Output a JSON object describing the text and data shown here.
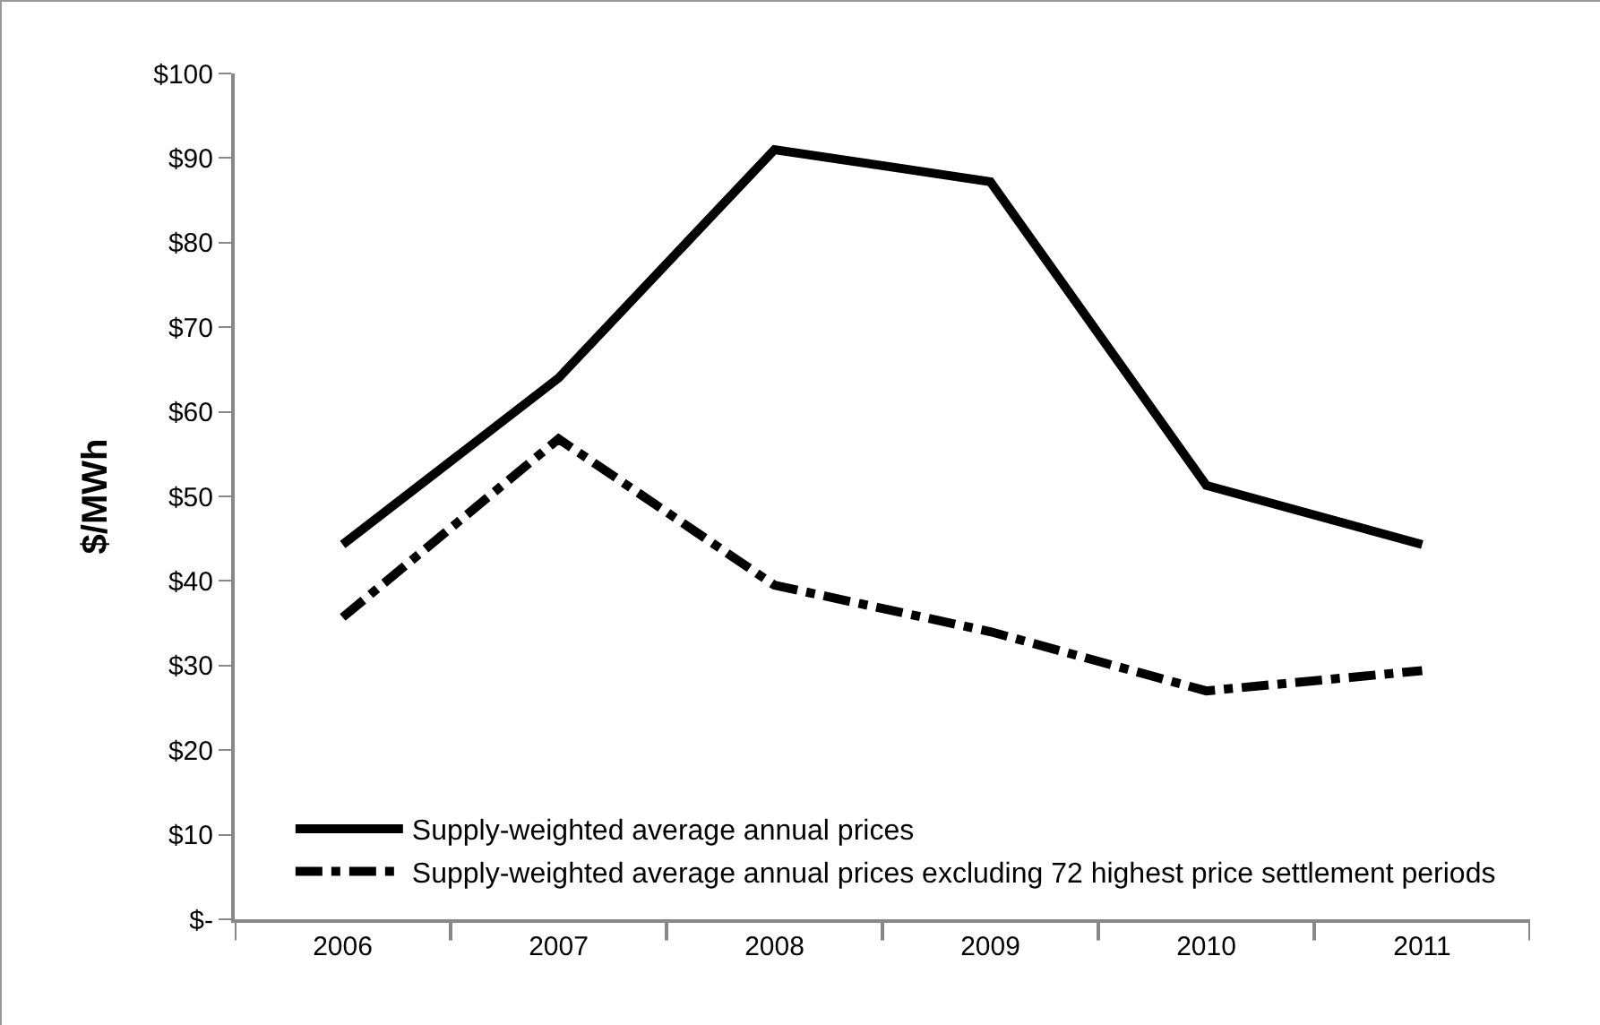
{
  "chart_data": {
    "type": "line",
    "ylabel": "$/MWh",
    "categories": [
      "2006",
      "2007",
      "2008",
      "2009",
      "2010",
      "2011"
    ],
    "series": [
      {
        "name": "Supply-weighted average annual prices",
        "color": "#000000",
        "line_style": "solid",
        "values": [
          44.3,
          64,
          91,
          87.2,
          51.3,
          44.3
        ]
      },
      {
        "name": "Supply-weighted average annual prices excluding 72 highest price settlement periods",
        "color": "#000000",
        "line_style": "dashed",
        "values": [
          35.7,
          56.8,
          39.5,
          34,
          27,
          29.4
        ]
      }
    ],
    "ylim": [
      0,
      100
    ],
    "yticks": [
      {
        "value": 0,
        "label": "$-"
      },
      {
        "value": 10,
        "label": "$10"
      },
      {
        "value": 20,
        "label": "$20"
      },
      {
        "value": 30,
        "label": "$30"
      },
      {
        "value": 40,
        "label": "$40"
      },
      {
        "value": 50,
        "label": "$50"
      },
      {
        "value": 60,
        "label": "$60"
      },
      {
        "value": 70,
        "label": "$70"
      },
      {
        "value": 80,
        "label": "$80"
      },
      {
        "value": 90,
        "label": "$90"
      },
      {
        "value": 100,
        "label": "$100"
      }
    ],
    "grid": false,
    "legend": "bottom left",
    "marker": "none"
  }
}
